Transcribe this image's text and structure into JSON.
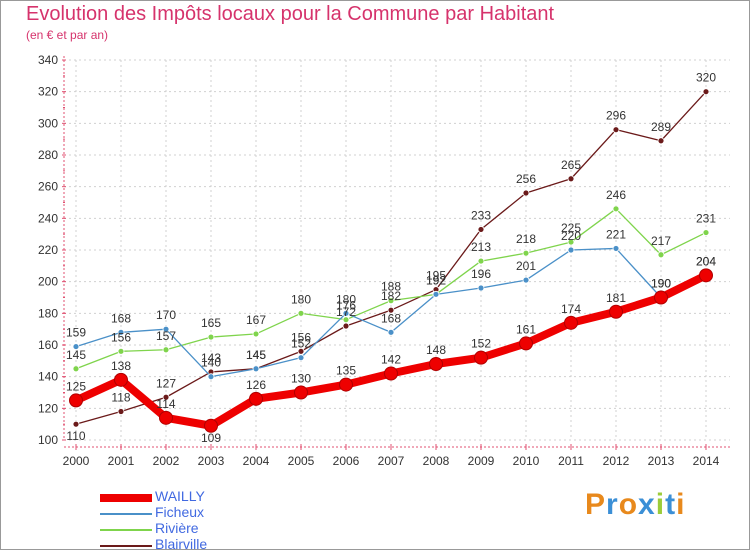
{
  "title": "Evolution des Impôts locaux pour la Commune par Habitant",
  "subtitle": "(en € et par an)",
  "logo": "Proxiti",
  "colors": {
    "title": "#d6336c",
    "axis": "#e05070",
    "legend_text": "#4169e1",
    "grid": "#cccccc"
  },
  "chart_data": {
    "type": "line",
    "x": [
      2000,
      2001,
      2002,
      2003,
      2004,
      2005,
      2006,
      2007,
      2008,
      2009,
      2010,
      2011,
      2012,
      2013,
      2014
    ],
    "ylim": [
      100,
      340
    ],
    "yticks": [
      100,
      120,
      140,
      160,
      180,
      200,
      220,
      240,
      260,
      280,
      300,
      320,
      340
    ],
    "grid": true,
    "legend_position": "bottom-left",
    "series": [
      {
        "name": "WAILLY",
        "color": "#ee0000",
        "values": [
          125,
          138,
          114,
          109,
          126,
          130,
          135,
          142,
          148,
          152,
          161,
          174,
          181,
          190,
          204
        ]
      },
      {
        "name": "Ficheux",
        "color": "#4a90c8",
        "values": [
          159,
          168,
          170,
          140,
          145,
          152,
          180,
          168,
          192,
          196,
          201,
          220,
          221,
          190,
          204
        ]
      },
      {
        "name": "Rivière",
        "color": "#7fd44c",
        "values": [
          145,
          156,
          157,
          165,
          167,
          180,
          176,
          188,
          192,
          213,
          218,
          225,
          246,
          217,
          231
        ]
      },
      {
        "name": "Blairville",
        "color": "#6b1a1a",
        "values": [
          110,
          118,
          127,
          143,
          145,
          156,
          172,
          182,
          195,
          233,
          256,
          265,
          296,
          289,
          320
        ]
      }
    ]
  }
}
